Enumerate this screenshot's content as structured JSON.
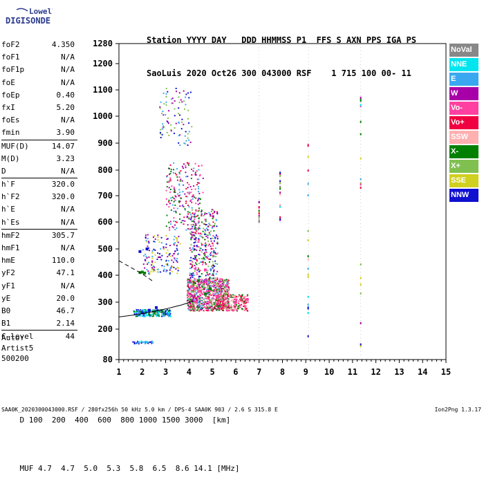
{
  "logo": {
    "line1": "Lowell",
    "line2": "DIGISONDE"
  },
  "header": {
    "line1": "Station YYYY DAY   DDD HHMMSS P1  FFS S AXN PPS IGA PS",
    "line2": "SaoLuis 2020 Oct26 300 043000 RSF    1 715 100 00- 11"
  },
  "params": [
    {
      "k": "foF2",
      "v": "4.350"
    },
    {
      "k": "foF1",
      "v": "N/A"
    },
    {
      "k": "foF1p",
      "v": "N/A"
    },
    {
      "k": "foE",
      "v": "N/A"
    },
    {
      "k": "foEp",
      "v": "0.40"
    },
    {
      "k": "fxI",
      "v": "5.20"
    },
    {
      "k": "foEs",
      "v": "N/A"
    },
    {
      "k": "fmin",
      "v": "3.90"
    },
    {
      "k": "MUF(D)",
      "v": "14.07"
    },
    {
      "k": "M(D)",
      "v": "3.23"
    },
    {
      "k": "D",
      "v": "N/A"
    },
    {
      "k": "h`F",
      "v": "320.0"
    },
    {
      "k": "h`F2",
      "v": "320.0"
    },
    {
      "k": "h`E",
      "v": "N/A"
    },
    {
      "k": "h`Es",
      "v": "N/A"
    },
    {
      "k": "hmF2",
      "v": "305.7"
    },
    {
      "k": "hmF1",
      "v": "N/A"
    },
    {
      "k": "hmE",
      "v": "110.0"
    },
    {
      "k": "yF2",
      "v": "47.1"
    },
    {
      "k": "yF1",
      "v": "N/A"
    },
    {
      "k": "yE",
      "v": "20.0"
    },
    {
      "k": "B0",
      "v": "46.7"
    },
    {
      "k": "B1",
      "v": "2.14"
    },
    {
      "k": "C-level",
      "v": "44"
    }
  ],
  "auto": {
    "line1": "Auto:",
    "line2": "Artist5",
    "line3": "500200"
  },
  "legend": [
    {
      "label": "NoVal",
      "color": "#888888",
      "text_color": "#ffffff"
    },
    {
      "label": "NNE",
      "color": "#00e5ee",
      "text_color": "#ffffff"
    },
    {
      "label": "E",
      "color": "#3aa8f0",
      "text_color": "#ffffff"
    },
    {
      "label": "W",
      "color": "#a800a8",
      "text_color": "#ffffff"
    },
    {
      "label": "Vo-",
      "color": "#ff40a0",
      "text_color": "#ffffff"
    },
    {
      "label": "Vo+",
      "color": "#f00040",
      "text_color": "#ffffff"
    },
    {
      "label": "SSW",
      "color": "#ffb0b0",
      "text_color": "#ffffff"
    },
    {
      "label": "X-",
      "color": "#008000",
      "text_color": "#ffffff"
    },
    {
      "label": "X+",
      "color": "#80c050",
      "text_color": "#ffffff"
    },
    {
      "label": "SSE",
      "color": "#d0d020",
      "text_color": "#ffffff"
    },
    {
      "label": "NNW",
      "color": "#1010d0",
      "text_color": "#ffffff"
    }
  ],
  "bottom": {
    "row1_label": "D",
    "row1": [
      "100",
      "200",
      "400",
      "600",
      "800",
      "1000",
      "1500",
      "3000",
      "[km]"
    ],
    "row2_label": "MUF",
    "row2": [
      "4.7",
      "4.7",
      "5.0",
      "5.3",
      "5.8",
      "6.5",
      "8.6",
      "14.1",
      "[MHz]"
    ]
  },
  "footer": {
    "left": "SAA0K_2020300043000.RSF / 280fx256h 50 kHz 5.0 km / DPS-4 SAA0K 903 / 2.6 S 315.8 E",
    "right": "Ion2Png 1.3.17"
  },
  "chart_data": {
    "type": "scatter",
    "xlabel": "",
    "ylabel": "",
    "x_ticks": [
      1,
      2,
      3,
      4,
      5,
      6,
      7,
      8,
      9,
      10,
      11,
      12,
      13,
      14,
      15
    ],
    "y_ticks": [
      80,
      200,
      300,
      400,
      500,
      600,
      700,
      800,
      900,
      1000,
      1100,
      1200,
      1280
    ],
    "xlim": [
      1,
      15
    ],
    "ylim": [
      80,
      1280
    ],
    "y_scale": "non-linear (ionogram virtual height)",
    "series": [
      {
        "name": "X-",
        "color": "#008000",
        "points": [
          [
            1.9,
            410
          ],
          [
            2.0,
            412
          ],
          [
            2.1,
            408
          ],
          [
            4.4,
            380
          ],
          [
            4.7,
            330
          ],
          [
            4.9,
            350
          ]
        ]
      },
      {
        "name": "Vo-",
        "color": "#ff40a0",
        "points": [
          [
            4.3,
            300
          ],
          [
            4.5,
            340
          ],
          [
            4.7,
            420
          ],
          [
            5.2,
            320
          ],
          [
            5.6,
            360
          ],
          [
            6.0,
            300
          ],
          [
            6.5,
            310
          ]
        ]
      },
      {
        "name": "NNW",
        "color": "#1010d0",
        "points": [
          [
            2.0,
            260
          ],
          [
            2.3,
            270
          ],
          [
            2.6,
            280
          ],
          [
            1.9,
            490
          ],
          [
            2.2,
            500
          ]
        ]
      }
    ],
    "curves": [
      {
        "name": "profile",
        "style": "dashed",
        "points": [
          [
            1.0,
            455
          ],
          [
            1.5,
            430
          ],
          [
            2.0,
            405
          ],
          [
            2.5,
            375
          ]
        ]
      },
      {
        "name": "trace",
        "style": "solid",
        "points": [
          [
            1.0,
            245
          ],
          [
            1.6,
            252
          ],
          [
            2.3,
            262
          ],
          [
            3.0,
            275
          ],
          [
            3.7,
            290
          ],
          [
            4.2,
            305
          ]
        ]
      }
    ]
  }
}
